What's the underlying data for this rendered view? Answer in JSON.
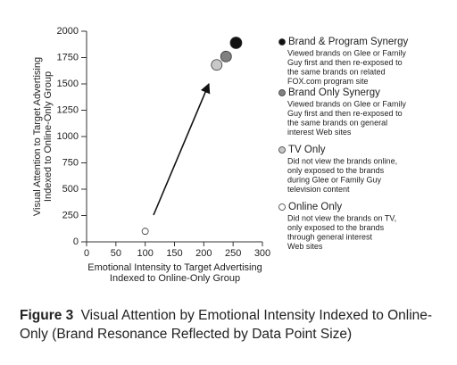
{
  "chart_data": {
    "type": "scatter",
    "xlabel": [
      "Emotional Intensity to Target Advertising",
      "Indexed to Online-Only Group"
    ],
    "ylabel": [
      "Visual Attention to Target Advertising",
      "Indexed to Online-Only Group"
    ],
    "xlim": [
      0,
      300
    ],
    "xticks": [
      0,
      50,
      100,
      150,
      200,
      250,
      300
    ],
    "ylim": [
      0,
      2000
    ],
    "yticks": [
      0,
      250,
      500,
      750,
      1000,
      1250,
      1500,
      1750,
      2000
    ],
    "series": [
      {
        "name": "Brand & Program Synergy",
        "color": "#111111",
        "x": [
          255
        ],
        "values": [
          1890
        ],
        "sizes": [
          6.5
        ],
        "description": [
          "Viewed brands on Glee or Family",
          "Guy first and then re-exposed to",
          "the same brands on related",
          "FOX.com program site"
        ]
      },
      {
        "name": "Brand Only Synergy",
        "color": "#808080",
        "x": [
          238
        ],
        "values": [
          1760
        ],
        "sizes": [
          6
        ],
        "description": [
          "Viewed brands on Glee or Family",
          "Guy first and then re-exposed to",
          "the same brands on general",
          "interest Web sites"
        ]
      },
      {
        "name": "TV Only",
        "color": "#c8c8c8",
        "x": [
          222
        ],
        "values": [
          1680
        ],
        "sizes": [
          6
        ],
        "description": [
          "Did not view the brands online,",
          "only exposed to the brands",
          "during Glee or Family Guy",
          "television content"
        ]
      },
      {
        "name": "Online Only",
        "color": "#ffffff",
        "x": [
          100
        ],
        "values": [
          100
        ],
        "sizes": [
          3.5
        ],
        "description": [
          "Did not view the brands on TV,",
          "only exposed to the brands",
          "through general interest",
          "Web sites"
        ]
      }
    ]
  },
  "caption": {
    "label": "Figure 3",
    "text": "Visual Attention by Emotional Intensity Indexed to Online-Only (Brand Resonance Reflected by Data Point Size)"
  }
}
